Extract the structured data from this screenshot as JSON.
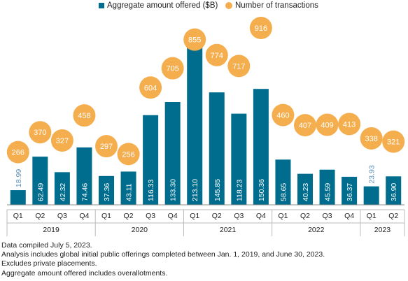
{
  "legend": {
    "series1": "Aggregate amount offered ($B)",
    "series2": "Number of transactions"
  },
  "colors": {
    "bar": "#006D8F",
    "bubble": "#F5AE4E",
    "bubble_text": "#ffffff",
    "first_bar_label": "#5B8FB9",
    "axis": "#888888",
    "text": "#222222"
  },
  "chart_data": {
    "type": "bar",
    "series": [
      {
        "name": "Aggregate amount offered ($B)",
        "values": [
          18.99,
          62.49,
          42.32,
          74.46,
          37.36,
          43.11,
          116.33,
          133.3,
          213.1,
          145.85,
          118.23,
          150.36,
          58.65,
          40.23,
          45.59,
          36.37,
          23.93,
          36.9
        ],
        "labels": [
          "18.99",
          "62.49",
          "42.32",
          "74.46",
          "37.36",
          "43.11",
          "116.33",
          "133.30",
          "213.10",
          "145.85",
          "118.23",
          "150.36",
          "58.65",
          "40.23",
          "45.59",
          "36.37",
          "23.93",
          "36.90"
        ]
      },
      {
        "name": "Number of transactions",
        "values": [
          266,
          370,
          327,
          458,
          297,
          256,
          604,
          705,
          855,
          774,
          717,
          916,
          460,
          407,
          409,
          413,
          338,
          321
        ]
      }
    ],
    "categories": [
      "Q1",
      "Q2",
      "Q3",
      "Q4",
      "Q1",
      "Q2",
      "Q3",
      "Q4",
      "Q1",
      "Q2",
      "Q3",
      "Q4",
      "Q1",
      "Q2",
      "Q3",
      "Q4",
      "Q1",
      "Q2"
    ],
    "groups": [
      {
        "label": "2019",
        "count": 4
      },
      {
        "label": "2020",
        "count": 4
      },
      {
        "label": "2021",
        "count": 4
      },
      {
        "label": "2022",
        "count": 4
      },
      {
        "label": "2023",
        "count": 2
      }
    ],
    "ylim_amount": [
      0,
      213.1
    ],
    "ylim_count": [
      250,
      916
    ],
    "legend_position": "top-center",
    "grid": false
  },
  "notes": [
    "Data compiled July 5, 2023.",
    "Analysis includes global initial public offerings completed between Jan. 1, 2019, and June 30, 2023.",
    "Excludes private placements.",
    "Aggregate amount offered includes overallotments."
  ]
}
